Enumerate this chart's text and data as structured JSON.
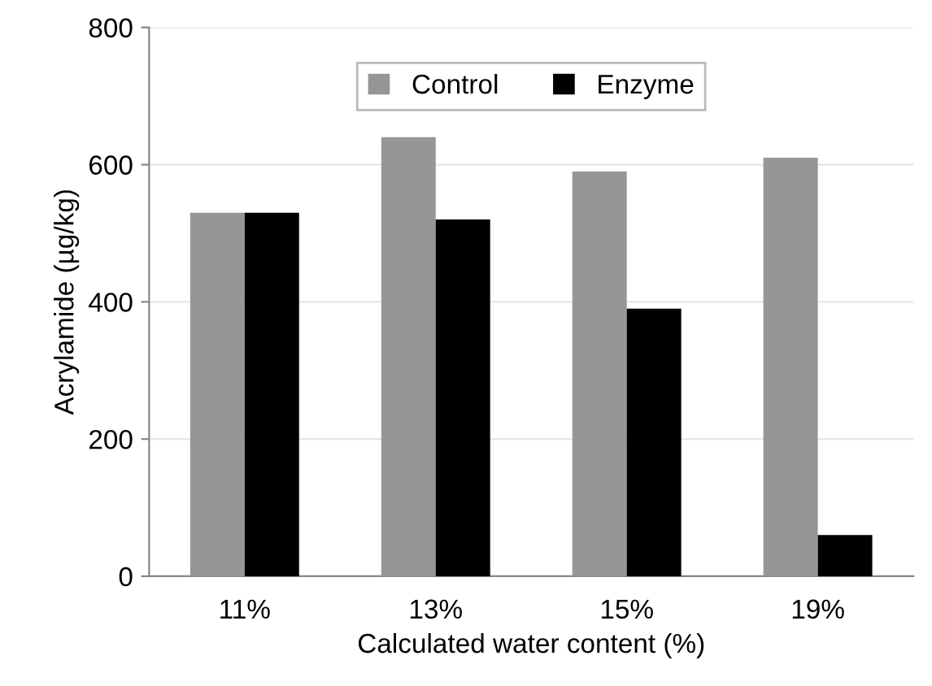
{
  "chart_data": {
    "type": "bar",
    "xlabel": "Calculated water content (%)",
    "ylabel": "Acrylamide (µg/kg)",
    "categories": [
      "11%",
      "13%",
      "15%",
      "19%"
    ],
    "series": [
      {
        "name": "Control",
        "color": "#969696",
        "values": [
          530,
          640,
          590,
          610
        ]
      },
      {
        "name": "Enzyme",
        "color": "#000000",
        "values": [
          530,
          520,
          390,
          60
        ]
      }
    ],
    "ylim": [
      0,
      800
    ],
    "yticks": [
      0,
      200,
      400,
      600,
      800
    ],
    "grid": "y",
    "legend": "top"
  }
}
